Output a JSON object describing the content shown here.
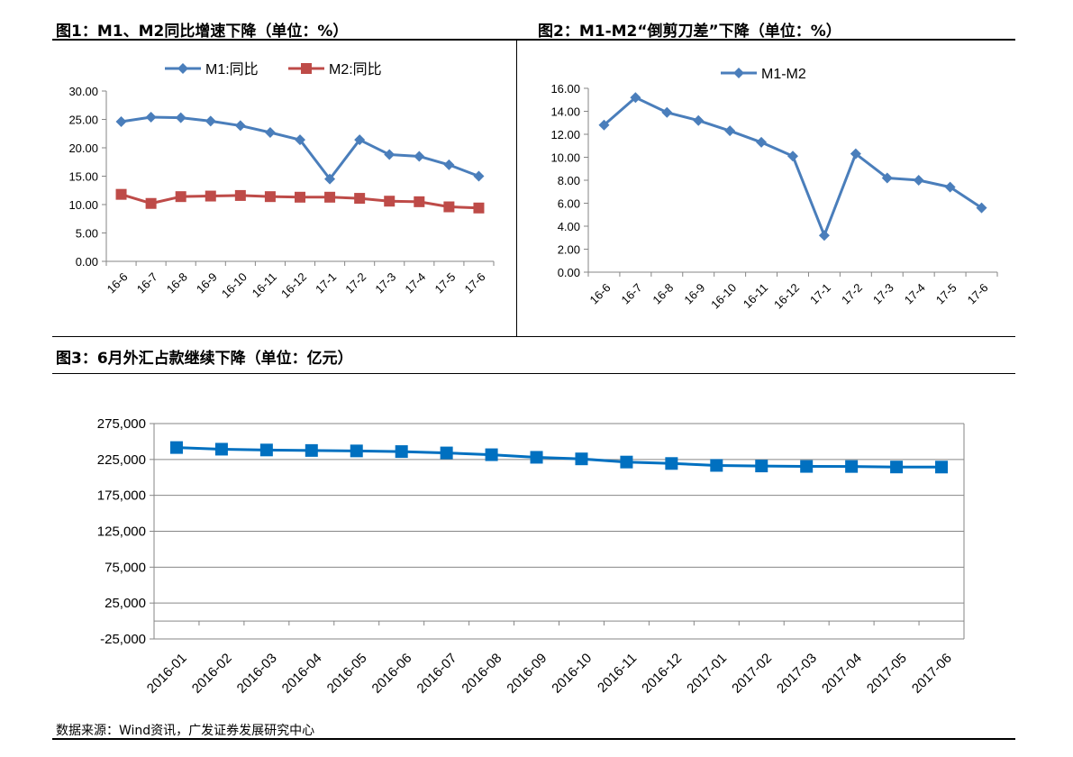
{
  "titles": {
    "chart1": "图1：M1、M2同比增速下降（单位：%）",
    "chart2": "图2：M1-M2“倒剪刀差”下降（单位：%）",
    "chart3": "图3：6月外汇占款继续下降（单位：亿元）"
  },
  "source": "数据来源：Wind资讯，广发证券发展研究中心",
  "colors": {
    "m1": "#4a7ebb",
    "m2": "#be4b48",
    "fx": "#0070c0"
  },
  "chart_data": [
    {
      "type": "line",
      "title": "",
      "categories": [
        "16-6",
        "16-7",
        "16-8",
        "16-9",
        "16-10",
        "16-11",
        "16-12",
        "17-1",
        "17-2",
        "17-3",
        "17-4",
        "17-5",
        "17-6"
      ],
      "series": [
        {
          "name": "M1:同比",
          "values": [
            24.6,
            25.4,
            25.3,
            24.7,
            23.9,
            22.7,
            21.4,
            14.5,
            21.4,
            18.8,
            18.5,
            17.0,
            15.0
          ],
          "marker": "diamond",
          "color": "#4a7ebb"
        },
        {
          "name": "M2:同比",
          "values": [
            11.8,
            10.2,
            11.4,
            11.5,
            11.6,
            11.4,
            11.3,
            11.3,
            11.1,
            10.6,
            10.5,
            9.6,
            9.4
          ],
          "marker": "square",
          "color": "#be4b48"
        }
      ],
      "yticks": [
        "0.00",
        "5.00",
        "10.00",
        "15.00",
        "20.00",
        "25.00",
        "30.00"
      ],
      "ylim": [
        0,
        30
      ],
      "legend": "top",
      "grid": false
    },
    {
      "type": "line",
      "title": "",
      "categories": [
        "16-6",
        "16-7",
        "16-8",
        "16-9",
        "16-10",
        "16-11",
        "16-12",
        "17-1",
        "17-2",
        "17-3",
        "17-4",
        "17-5",
        "17-6"
      ],
      "series": [
        {
          "name": "M1-M2",
          "values": [
            12.8,
            15.2,
            13.9,
            13.2,
            12.3,
            11.3,
            10.1,
            3.2,
            10.3,
            8.2,
            8.0,
            7.4,
            5.6
          ],
          "marker": "diamond",
          "color": "#4a7ebb"
        }
      ],
      "yticks": [
        "0.00",
        "2.00",
        "4.00",
        "6.00",
        "8.00",
        "10.00",
        "12.00",
        "14.00",
        "16.00"
      ],
      "ylim": [
        0,
        16
      ],
      "legend": "top",
      "grid": false
    },
    {
      "type": "line",
      "title": "",
      "categories": [
        "2016-01",
        "2016-02",
        "2016-03",
        "2016-04",
        "2016-05",
        "2016-06",
        "2016-07",
        "2016-08",
        "2016-09",
        "2016-10",
        "2016-11",
        "2016-12",
        "2017-01",
        "2017-02",
        "2017-03",
        "2017-04",
        "2017-05",
        "2017-06"
      ],
      "series": [
        {
          "values": [
            241600,
            239300,
            238200,
            237500,
            236900,
            236000,
            234100,
            231600,
            228000,
            225800,
            221400,
            219400,
            216700,
            215900,
            215300,
            215200,
            214500,
            214400
          ],
          "marker": "square",
          "color": "#0070c0"
        }
      ],
      "yticks": [
        "-25,000",
        "25,000",
        "75,000",
        "125,000",
        "175,000",
        "225,000",
        "275,000"
      ],
      "ylim": [
        -25000,
        275000
      ],
      "legend": "none",
      "grid": true
    }
  ]
}
